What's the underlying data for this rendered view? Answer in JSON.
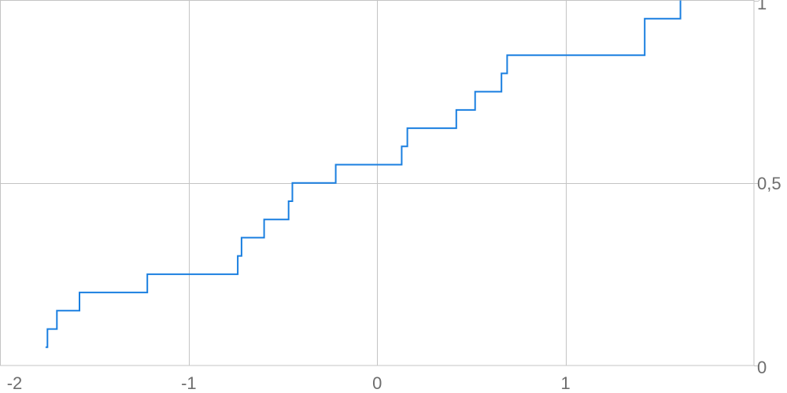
{
  "chart_data": {
    "type": "line",
    "interpolation": "step",
    "title": "",
    "xlabel": "",
    "ylabel": "",
    "xlim": [
      -2,
      2
    ],
    "ylim": [
      0,
      1
    ],
    "grid": true,
    "y_axis_side": "right",
    "x_ticks": [
      {
        "value": -2,
        "label": "-2"
      },
      {
        "value": -1,
        "label": "-1"
      },
      {
        "value": 0,
        "label": "0"
      },
      {
        "value": 1,
        "label": "1"
      }
    ],
    "y_ticks": [
      {
        "value": 0,
        "label": "0"
      },
      {
        "value": 0.5,
        "label": "0,5"
      },
      {
        "value": 1,
        "label": "1"
      }
    ],
    "series": [
      {
        "color": "#1a7fe0",
        "x": [
          -1.76,
          -1.75,
          -1.7,
          -1.58,
          -1.22,
          -0.74,
          -0.72,
          -0.6,
          -0.47,
          -0.45,
          -0.22,
          0.13,
          0.16,
          0.42,
          0.52,
          0.66,
          0.69,
          1.42,
          1.61
        ],
        "y": [
          0.05,
          0.1,
          0.15,
          0.2,
          0.25,
          0.3,
          0.35,
          0.4,
          0.45,
          0.5,
          0.55,
          0.6,
          0.65,
          0.7,
          0.75,
          0.8,
          0.85,
          0.95,
          1.0
        ]
      }
    ]
  }
}
